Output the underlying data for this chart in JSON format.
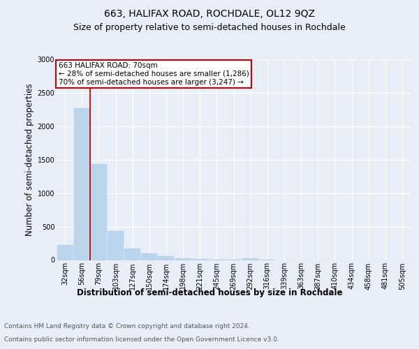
{
  "title": "663, HALIFAX ROAD, ROCHDALE, OL12 9QZ",
  "subtitle": "Size of property relative to semi-detached houses in Rochdale",
  "xlabel": "Distribution of semi-detached houses by size in Rochdale",
  "ylabel": "Number of semi-detached properties",
  "categories": [
    "32sqm",
    "56sqm",
    "79sqm",
    "103sqm",
    "127sqm",
    "150sqm",
    "174sqm",
    "198sqm",
    "221sqm",
    "245sqm",
    "269sqm",
    "292sqm",
    "316sqm",
    "339sqm",
    "363sqm",
    "387sqm",
    "410sqm",
    "434sqm",
    "458sqm",
    "481sqm",
    "505sqm"
  ],
  "values": [
    220,
    2270,
    1440,
    430,
    175,
    100,
    55,
    30,
    18,
    10,
    5,
    28,
    2,
    0,
    0,
    0,
    0,
    0,
    0,
    0,
    0
  ],
  "bar_color": "#bad4eb",
  "bar_edge_color": "#bad4eb",
  "property_line_x": 1.5,
  "annotation_line1": "663 HALIFAX ROAD: 70sqm",
  "annotation_line2": "← 28% of semi-detached houses are smaller (1,286)",
  "annotation_line3": "70% of semi-detached houses are larger (3,247) →",
  "annotation_box_color": "#ffffff",
  "annotation_box_edge": "#cc0000",
  "red_line_color": "#cc0000",
  "ylim": [
    0,
    3000
  ],
  "yticks": [
    0,
    500,
    1000,
    1500,
    2000,
    2500,
    3000
  ],
  "footer_line1": "Contains HM Land Registry data © Crown copyright and database right 2024.",
  "footer_line2": "Contains public sector information licensed under the Open Government Licence v3.0.",
  "background_color": "#e8eef7",
  "plot_background": "#e8eef7",
  "grid_color": "#ffffff",
  "title_fontsize": 10,
  "subtitle_fontsize": 9,
  "axis_label_fontsize": 8.5,
  "tick_fontsize": 7,
  "footer_fontsize": 6.5,
  "annotation_fontsize": 7.5
}
